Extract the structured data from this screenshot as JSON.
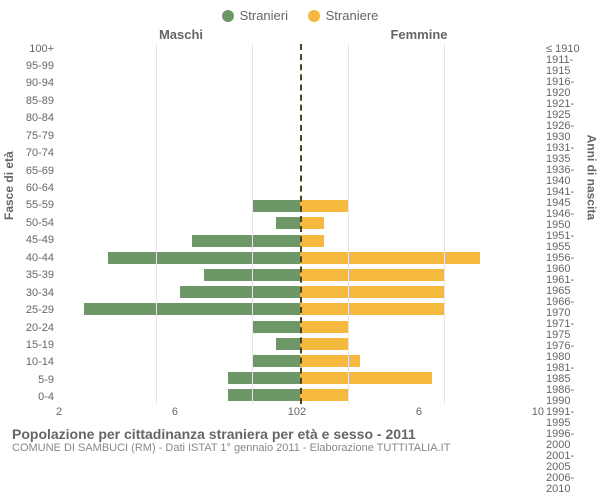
{
  "legend": {
    "male_label": "Stranieri",
    "female_label": "Straniere",
    "male_color": "#6d9767",
    "female_color": "#f5b940"
  },
  "headers": {
    "male": "Maschi",
    "female": "Femmine"
  },
  "axes": {
    "left_title": "Fasce di età",
    "right_title": "Anni di nascita",
    "x_ticks": [
      10,
      6,
      2,
      2,
      6,
      10
    ],
    "x_max": 10,
    "left_labels": [
      "100+",
      "95-99",
      "90-94",
      "85-89",
      "80-84",
      "75-79",
      "70-74",
      "65-69",
      "60-64",
      "55-59",
      "50-54",
      "45-49",
      "40-44",
      "35-39",
      "30-34",
      "25-29",
      "20-24",
      "15-19",
      "10-14",
      "5-9",
      "0-4"
    ],
    "right_labels": [
      "≤ 1910",
      "1911-1915",
      "1916-1920",
      "1921-1925",
      "1926-1930",
      "1931-1935",
      "1936-1940",
      "1941-1945",
      "1946-1950",
      "1951-1955",
      "1956-1960",
      "1961-1965",
      "1966-1970",
      "1971-1975",
      "1976-1980",
      "1981-1985",
      "1986-1990",
      "1991-1995",
      "1996-2000",
      "2001-2005",
      "2006-2010"
    ]
  },
  "data": {
    "male": [
      0,
      0,
      0,
      0,
      0,
      0,
      0,
      0,
      0,
      2.0,
      1.0,
      4.5,
      8.0,
      4.0,
      5.0,
      9.0,
      2.0,
      1.0,
      2.0,
      3.0,
      3.0
    ],
    "female": [
      0,
      0,
      0,
      0,
      0,
      0,
      0,
      0,
      0,
      2.0,
      1.0,
      1.0,
      7.5,
      6.0,
      6.0,
      6.0,
      2.0,
      2.0,
      2.5,
      5.5,
      2.0
    ]
  },
  "style": {
    "bg": "#ffffff",
    "text": "#666666",
    "grid": "#e6e6e6",
    "center_line": "#4a4324"
  },
  "caption": {
    "title": "Popolazione per cittadinanza straniera per età e sesso - 2011",
    "sub": "COMUNE DI SAMBUCI (RM) - Dati ISTAT 1° gennaio 2011 - Elaborazione TUTTITALIA.IT"
  }
}
